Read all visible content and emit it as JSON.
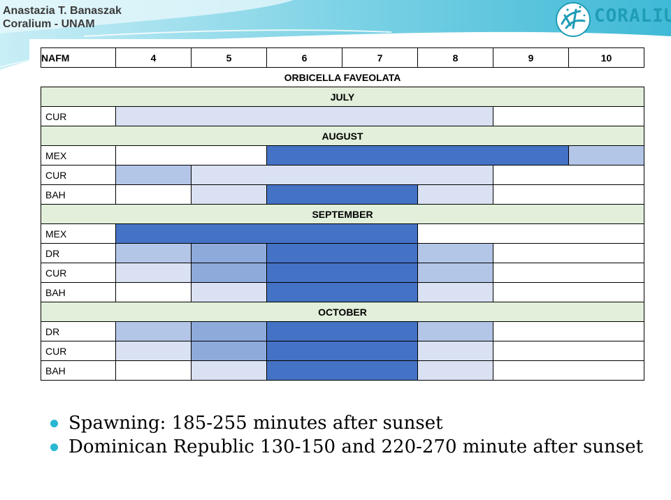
{
  "header": {
    "author_line1": "Anastazia T. Banaszak",
    "author_line2": "Coralium - UNAM",
    "logo_text": "CORALIUM"
  },
  "table": {
    "corner_label": "NAFM",
    "columns": [
      "4",
      "5",
      "6",
      "7",
      "8",
      "9",
      "10"
    ],
    "species": "ORBICELLA FAVEOLATA",
    "colors": {
      "dark": "#4472c4",
      "medium": "#8eaadb",
      "light": "#b4c6e7",
      "pale": "#d9e1f2",
      "month_band": "#e2efda"
    },
    "months": [
      {
        "name": "JULY",
        "rows": [
          {
            "site": "CUR",
            "cells": [
              "pale",
              "pale",
              "pale",
              "pale",
              "pale",
              "none",
              "none"
            ]
          }
        ]
      },
      {
        "name": "AUGUST",
        "rows": [
          {
            "site": "MEX",
            "cells": [
              "none",
              "none",
              "dark",
              "dark",
              "dark",
              "dark",
              "light"
            ]
          },
          {
            "site": "CUR",
            "cells": [
              "light",
              "pale",
              "pale",
              "pale",
              "pale",
              "none",
              "none"
            ]
          },
          {
            "site": "BAH",
            "cells": [
              "none",
              "pale",
              "dark",
              "dark",
              "pale",
              "none",
              "none"
            ]
          }
        ]
      },
      {
        "name": "SEPTEMBER",
        "rows": [
          {
            "site": "MEX",
            "cells": [
              "dark",
              "dark",
              "dark",
              "dark",
              "none",
              "none",
              "none"
            ]
          },
          {
            "site": "DR",
            "cells": [
              "light",
              "medium",
              "dark",
              "dark",
              "light",
              "none",
              "none"
            ]
          },
          {
            "site": "CUR",
            "cells": [
              "pale",
              "medium",
              "dark",
              "dark",
              "light",
              "none",
              "none"
            ]
          },
          {
            "site": "BAH",
            "cells": [
              "none",
              "pale",
              "dark",
              "dark",
              "pale",
              "none",
              "none"
            ]
          }
        ]
      },
      {
        "name": "OCTOBER",
        "rows": [
          {
            "site": "DR",
            "cells": [
              "light",
              "medium",
              "dark",
              "dark",
              "light",
              "none",
              "none"
            ]
          },
          {
            "site": "CUR",
            "cells": [
              "pale",
              "medium",
              "dark",
              "dark",
              "pale",
              "none",
              "none"
            ]
          },
          {
            "site": "BAH",
            "cells": [
              "none",
              "pale",
              "dark",
              "dark",
              "pale",
              "none",
              "none"
            ]
          }
        ]
      }
    ]
  },
  "bullets": [
    "Spawning: 185-255 minutes after sunset",
    "Dominican Republic 130-150 and 220-270 minute after sunset"
  ]
}
